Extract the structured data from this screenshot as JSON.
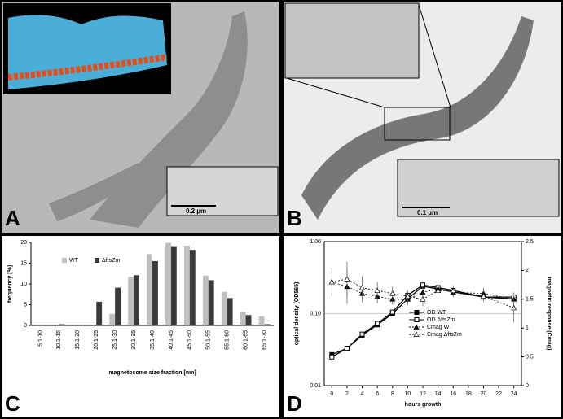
{
  "panels": {
    "a": "A",
    "b": "B",
    "c": "C",
    "d": "D"
  },
  "scale_bars": {
    "a_inset": "0.2 µm",
    "b_inset": "0.1 µm"
  },
  "chart_data": [
    {
      "type": "bar",
      "x_label": "magnetosome size fraction [nm]",
      "y_label": "frequency [%]",
      "categories": [
        "5.1-10",
        "10.1-15",
        "15.1-20",
        "20.1-25",
        "25.1-30",
        "30.1-35",
        "35.1-40",
        "40.1-45",
        "45.1-50",
        "50.1-55",
        "55.1-60",
        "60.1-65",
        "65.1-70"
      ],
      "series": [
        {
          "name": "WT",
          "color": "#bfbfbf",
          "values": [
            0,
            0,
            0,
            0,
            2.8,
            11.7,
            17.2,
            19.9,
            19.2,
            12.0,
            8.1,
            3.2,
            2.2
          ]
        },
        {
          "name": "ΔftsZm",
          "color": "#3a3a3a",
          "values": [
            0,
            0.3,
            0,
            5.7,
            9.1,
            12.1,
            15.5,
            19.1,
            18.2,
            10.9,
            6.6,
            2.5,
            0.3
          ]
        }
      ],
      "ylim": [
        0,
        20
      ],
      "yticks": [
        0,
        5,
        10,
        15,
        20
      ],
      "legend": "top-left"
    },
    {
      "type": "line",
      "x_label": "hours growth",
      "y_label": "optical density (OD565)",
      "y2_label": "magnetic response (Cmag)",
      "x": [
        0,
        2,
        4,
        6,
        8,
        10,
        12,
        14,
        16,
        20,
        24
      ],
      "xlim": [
        -1,
        25
      ],
      "xticks": [
        0,
        2,
        4,
        6,
        8,
        10,
        12,
        14,
        16,
        18,
        20,
        22,
        24
      ],
      "log_y": true,
      "ylim": [
        0.01,
        1
      ],
      "yticks": [
        {
          "value": 0.01,
          "label": "0.01"
        },
        {
          "value": 0.1,
          "label": "0.10"
        },
        {
          "value": 1,
          "label": "1.00"
        }
      ],
      "y2lim": [
        0,
        2.5
      ],
      "y2ticks": [
        0,
        0.5,
        1,
        1.5,
        2,
        2.5
      ],
      "grid": true,
      "legend": "center",
      "series": [
        {
          "name": "OD WT",
          "color": "#000000",
          "marker": "square",
          "filled": true,
          "dashed": false,
          "values": [
            0.027,
            0.033,
            0.05,
            0.07,
            0.1,
            0.16,
            0.24,
            0.22,
            0.2,
            0.17,
            0.16
          ]
        },
        {
          "name": "OD ΔftsZm",
          "color": "#000000",
          "marker": "square",
          "filled": false,
          "dashed": false,
          "values": [
            0.025,
            0.033,
            0.052,
            0.073,
            0.105,
            0.18,
            0.25,
            0.23,
            0.21,
            0.17,
            0.17
          ]
        },
        {
          "name": "Cmag WT",
          "color": "#000000",
          "marker": "triangle",
          "filled": true,
          "dashed": true,
          "axis": "y2",
          "values": [
            1.8,
            1.72,
            1.6,
            1.55,
            1.5,
            1.5,
            1.62,
            1.68,
            1.62,
            1.6,
            1.5
          ],
          "errors": [
            0.25,
            0.3,
            0.15,
            0.12,
            0.1,
            0.1,
            0.1,
            0.08,
            0.08,
            0.1,
            0.12
          ]
        },
        {
          "name": "Cmag ΔftsZm",
          "color": "#000000",
          "marker": "triangle",
          "filled": false,
          "dashed": true,
          "axis": "y2",
          "values": [
            1.8,
            1.85,
            1.7,
            1.65,
            1.6,
            1.55,
            1.5,
            1.65,
            1.65,
            1.55,
            1.35
          ],
          "errors": [
            0.2,
            0.3,
            0.2,
            0.15,
            0.12,
            0.1,
            0.12,
            0.08,
            0.08,
            0.1,
            0.25
          ]
        }
      ]
    }
  ]
}
